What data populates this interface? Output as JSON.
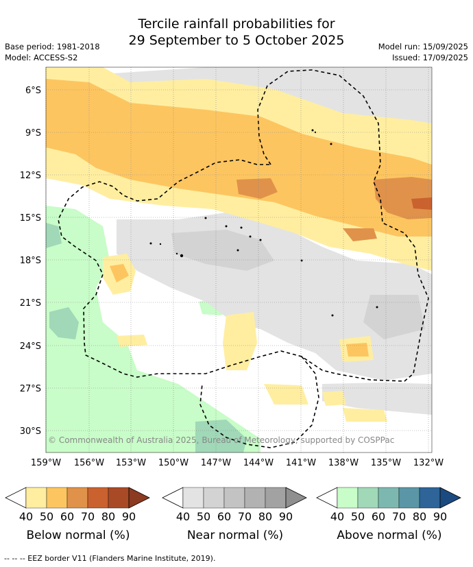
{
  "header": {
    "title_line1": "Tercile rainfall probabilities for",
    "title_line2": "29 September to 5 October 2025",
    "base_period": "Base period: 1981-2018",
    "model": "Model: ACCESS-S2",
    "model_run": "Model run: 15/09/2025",
    "issued": "Issued: 17/09/2025"
  },
  "map": {
    "lat_labels": [
      "6°S",
      "9°S",
      "12°S",
      "15°S",
      "18°S",
      "21°S",
      "24°S",
      "27°S",
      "30°S"
    ],
    "lon_labels": [
      "159°W",
      "156°W",
      "153°W",
      "150°W",
      "147°W",
      "144°W",
      "141°W",
      "138°W",
      "135°W",
      "132°W"
    ],
    "copyright": "© Commonwealth of Australia 2025, Bureau of Meteorology, supported by COSPPac"
  },
  "legends": [
    {
      "name": "below",
      "label": "Below normal (%)",
      "ticks": [
        "40",
        "50",
        "60",
        "70",
        "80",
        "90"
      ],
      "colors": [
        "#ffeea0",
        "#fdc560",
        "#e0924a",
        "#c9622e",
        "#a94a26",
        "#8c3a20"
      ]
    },
    {
      "name": "near",
      "label": "Near normal (%)",
      "ticks": [
        "40",
        "50",
        "60",
        "70",
        "80",
        "90"
      ],
      "colors": [
        "#e3e3e3",
        "#d3d3d3",
        "#c3c3c3",
        "#b2b2b2",
        "#a2a2a2",
        "#8f8f8f"
      ]
    },
    {
      "name": "above",
      "label": "Above normal (%)",
      "ticks": [
        "40",
        "50",
        "60",
        "70",
        "80",
        "90"
      ],
      "colors": [
        "#c8fcc8",
        "#a0d8b8",
        "#7cb8b0",
        "#5a96a6",
        "#2e6498",
        "#1a4a80"
      ]
    }
  ],
  "footnote": "--  --  -- EEZ border V11 (Flanders Marine Institute, 2019)."
}
